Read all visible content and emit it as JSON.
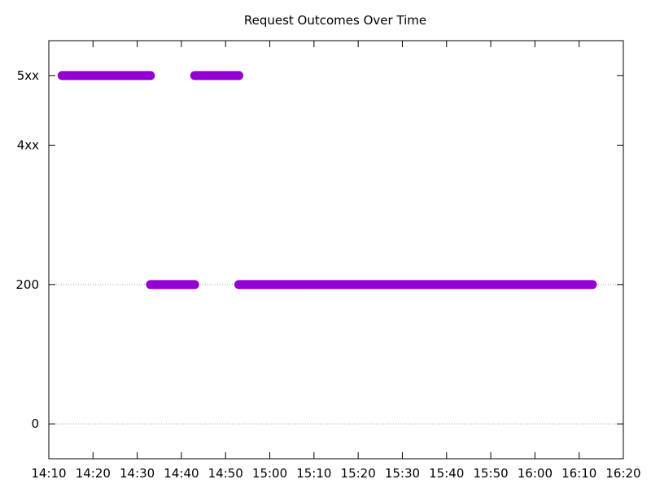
{
  "chart_data": {
    "type": "scatter",
    "title": "Request Outcomes Over Time",
    "xlabel": "",
    "ylabel": "",
    "xlim": [
      "14:10",
      "16:20"
    ],
    "x_ticks": [
      "14:10",
      "14:20",
      "14:30",
      "14:40",
      "14:50",
      "15:00",
      "15:10",
      "15:20",
      "15:30",
      "15:40",
      "15:50",
      "16:00",
      "16:10",
      "16:20"
    ],
    "y_ticks": [
      {
        "label": "0",
        "value": 0
      },
      {
        "label": "200",
        "value": 200
      },
      {
        "label": "4xx",
        "value": 400
      },
      {
        "label": "5xx",
        "value": 500
      }
    ],
    "ylim": [
      -50,
      550
    ],
    "grid": "dotted lines at y=0 and y=200",
    "series": [
      {
        "color": "#9400d3",
        "segments": [
          {
            "y": 500,
            "start": "14:13",
            "end": "14:33"
          },
          {
            "y": 200,
            "start": "14:33",
            "end": "14:43"
          },
          {
            "y": 500,
            "start": "14:43",
            "end": "14:53"
          },
          {
            "y": 200,
            "start": "14:53",
            "end": "16:13"
          }
        ]
      }
    ]
  }
}
